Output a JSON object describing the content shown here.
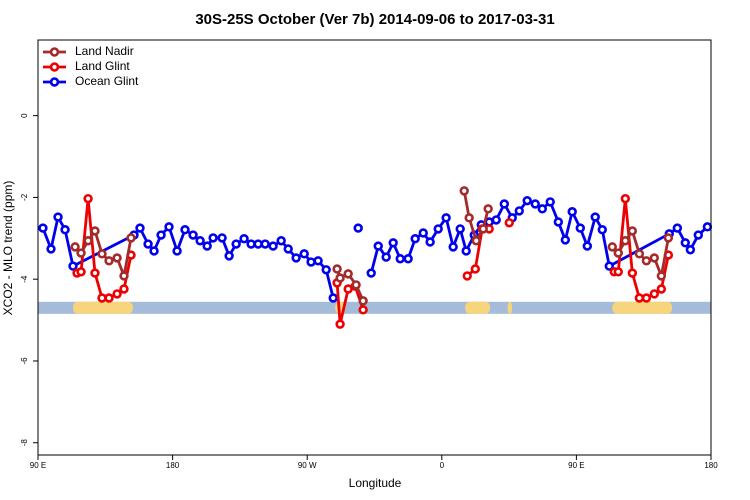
{
  "chart_data": {
    "type": "line",
    "title": "30S-25S October (Ver 7b)   2014-09-06 to 2017-03-31",
    "xlabel": "Longitude",
    "ylabel": "XCO2 - MLO trend (ppm)",
    "xlim": [
      90,
      540
    ],
    "xticks": [
      {
        "value": 90,
        "label": "90 E"
      },
      180,
      {
        "value": 270,
        "label": "90 W"
      },
      {
        "value": 360,
        "label": "0"
      },
      {
        "value": 450,
        "label": "90 E"
      },
      {
        "value": 540,
        "label": "180"
      }
    ],
    "ylim": [
      -8.3,
      1.85
    ],
    "yticks": [
      0,
      -2,
      -4,
      -6,
      -8
    ],
    "legend": "top-left",
    "band": {
      "value": -4.7,
      "color": "#a4bbd9",
      "land_color": "#f7d57c",
      "land": [
        [
          113.4,
          153.5
        ],
        [
          288.7,
          295.4
        ],
        [
          375.6,
          392.3
        ],
        [
          404.0,
          407.0
        ],
        [
          474.0,
          514.0
        ]
      ]
    },
    "series": [
      {
        "name": "Land Nadir",
        "color": "#a52a2a",
        "x": [
          114.8,
          118.8,
          123.5,
          128.1,
          132.8,
          137.5,
          142.9,
          147.5,
          152.2,
          null,
          290.0,
          292.0,
          297.4,
          302.7,
          307.4,
          null,
          375.0,
          378.3,
          383.0,
          387.7,
          391.0,
          null,
          474.0,
          478.0,
          482.7,
          487.4,
          492.1,
          496.8,
          502.1,
          506.8,
          511.5
        ],
        "values": [
          -3.21,
          -3.36,
          -3.06,
          -2.82,
          -3.38,
          -3.55,
          -3.48,
          -3.92,
          -2.99,
          null,
          -3.75,
          -3.97,
          -3.87,
          -4.14,
          -4.53,
          null,
          -1.84,
          -2.5,
          -3.06,
          -2.77,
          -2.28,
          null,
          -3.21,
          -3.36,
          -3.06,
          -2.82,
          -3.38,
          -3.55,
          -3.48,
          -3.92,
          -2.99
        ]
      },
      {
        "name": "Land Glint",
        "color": "#ee0000",
        "x": [
          116.1,
          118.8,
          123.5,
          128.1,
          132.8,
          137.5,
          142.9,
          147.5,
          152.2,
          null,
          290.0,
          292.0,
          297.4,
          302.1,
          307.4,
          null,
          377.0,
          382.4,
          387.0,
          391.7,
          null,
          405.1,
          null,
          475.3,
          478.0,
          482.7,
          487.4,
          492.1,
          496.8,
          502.1,
          506.8,
          511.5
        ],
        "values": [
          -3.85,
          -3.82,
          -2.03,
          -3.85,
          -4.46,
          -4.46,
          -4.36,
          -4.24,
          -3.41,
          null,
          -4.09,
          -5.1,
          -4.24,
          -4.17,
          -4.75,
          null,
          -3.92,
          -3.75,
          -2.77,
          -2.77,
          null,
          -2.62,
          null,
          -3.82,
          -3.82,
          -2.03,
          -3.85,
          -4.46,
          -4.46,
          -4.36,
          -4.24,
          -3.41
        ]
      },
      {
        "name": "Ocean Glint",
        "color": "#0000ee",
        "x": [
          93.3,
          98.7,
          103.4,
          108.1,
          113.4,
          154.2,
          158.2,
          163.6,
          167.6,
          172.3,
          177.6,
          183.0,
          188.3,
          193.7,
          198.4,
          203.1,
          207.1,
          213.1,
          217.8,
          222.5,
          227.8,
          232.5,
          237.2,
          241.9,
          247.2,
          252.6,
          257.3,
          262.6,
          268.0,
          272.6,
          277.3,
          282.7,
          287.4,
          null,
          304.1,
          null,
          312.8,
          317.5,
          322.8,
          327.5,
          332.2,
          337.5,
          342.2,
          347.6,
          352.2,
          357.6,
          362.9,
          367.6,
          372.3,
          376.3,
          381.7,
          386.4,
          391.7,
          396.4,
          401.8,
          407.1,
          411.8,
          417.1,
          422.5,
          427.2,
          432.5,
          437.9,
          442.6,
          447.2,
          452.6,
          457.3,
          462.6,
          467.3,
          472.0,
          512.1,
          517.5,
          522.8,
          526.2,
          531.5,
          537.6
        ],
        "values": [
          -2.75,
          -3.26,
          -2.48,
          -2.79,
          -3.68,
          -2.92,
          -2.75,
          -3.14,
          -3.31,
          -2.92,
          -2.72,
          -3.31,
          -2.79,
          -2.92,
          -3.06,
          -3.19,
          -2.99,
          -2.99,
          -3.43,
          -3.14,
          -3.01,
          -3.14,
          -3.14,
          -3.14,
          -3.19,
          -3.06,
          -3.26,
          -3.48,
          -3.38,
          -3.58,
          -3.55,
          -3.77,
          -4.46,
          null,
          -2.75,
          null,
          -3.85,
          -3.19,
          -3.46,
          -3.11,
          -3.5,
          -3.5,
          -3.01,
          -2.87,
          -3.09,
          -2.77,
          -2.5,
          -3.21,
          -2.77,
          -3.31,
          -2.92,
          -2.67,
          -2.6,
          -2.55,
          -2.16,
          -2.5,
          -2.33,
          -2.08,
          -2.16,
          -2.28,
          -2.11,
          -2.6,
          -3.04,
          -2.35,
          -2.75,
          -3.19,
          -2.48,
          -2.79,
          -3.68,
          -2.89,
          -2.75,
          -3.11,
          -3.28,
          -2.92,
          -2.72
        ]
      }
    ]
  }
}
